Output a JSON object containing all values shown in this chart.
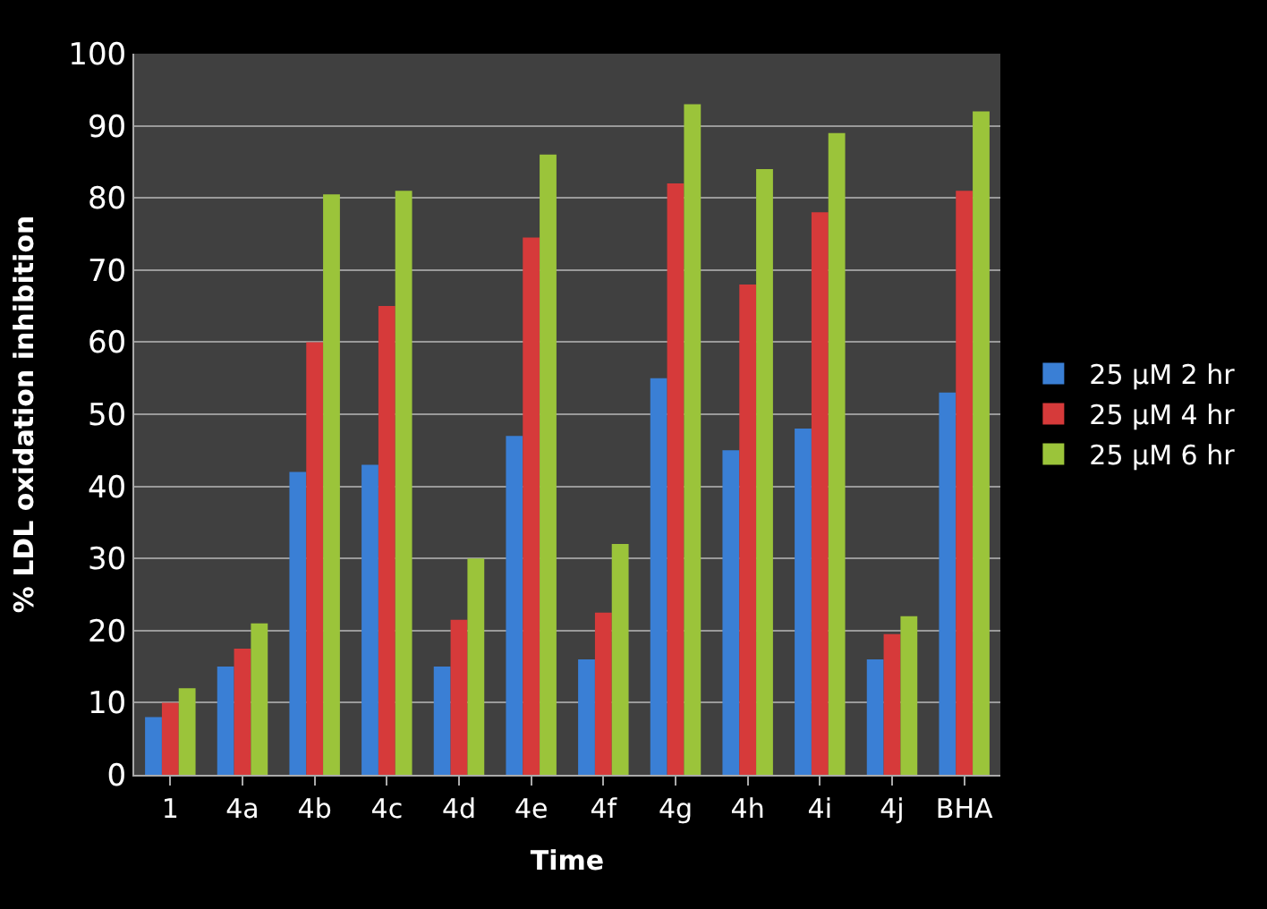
{
  "chart_data": {
    "type": "bar",
    "xlabel": "Time",
    "ylabel": "% LDL oxidation inhibition",
    "categories": [
      "1",
      "4a",
      "4b",
      "4c",
      "4d",
      "4e",
      "4f",
      "4g",
      "4h",
      "4i",
      "4j",
      "BHA"
    ],
    "series": [
      {
        "name": "25 µM 2 hr",
        "color": "#3a7fd5",
        "values": [
          8,
          15,
          42,
          43,
          15,
          47,
          16,
          55,
          45,
          48,
          16,
          53
        ]
      },
      {
        "name": "25 µM 4 hr",
        "color": "#d63a3a",
        "values": [
          10,
          17.5,
          60,
          65,
          21.5,
          74.5,
          22.5,
          82,
          68,
          78,
          19.5,
          81
        ]
      },
      {
        "name": "25 µM 6 hr",
        "color": "#9bc43a",
        "values": [
          12,
          21,
          80.5,
          81,
          30,
          86,
          32,
          93,
          84,
          89,
          22,
          92
        ]
      }
    ],
    "ylim": [
      0,
      100
    ],
    "yticks": [
      0,
      10,
      20,
      30,
      40,
      50,
      60,
      70,
      80,
      90,
      100
    ],
    "grid": "y",
    "legend": "right"
  }
}
